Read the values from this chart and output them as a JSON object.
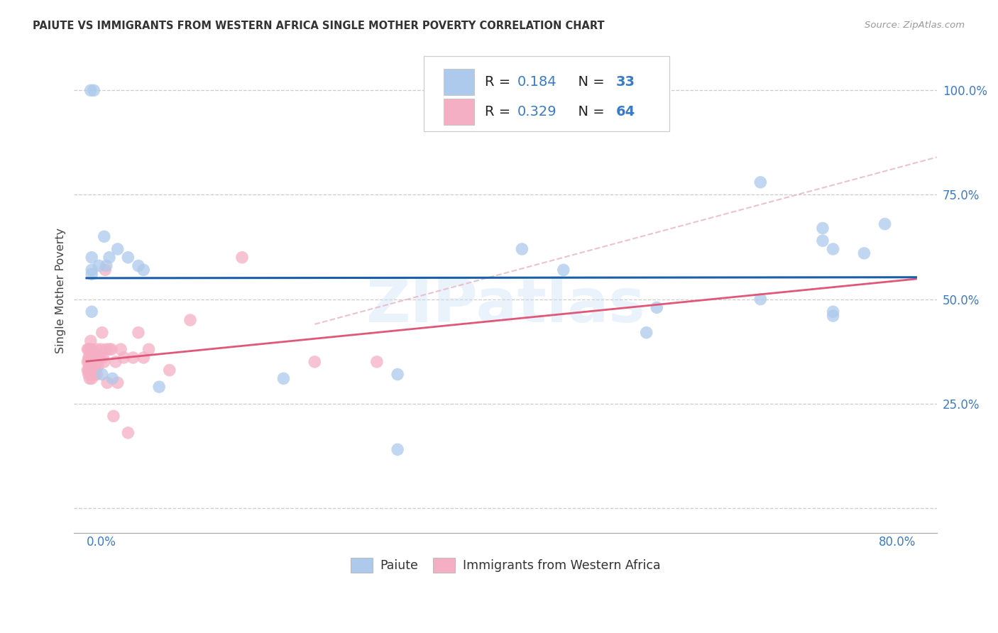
{
  "title": "PAIUTE VS IMMIGRANTS FROM WESTERN AFRICA SINGLE MOTHER POVERTY CORRELATION CHART",
  "source": "Source: ZipAtlas.com",
  "ylabel": "Single Mother Poverty",
  "legend_r1": "0.184",
  "legend_n1": "33",
  "legend_r2": "0.329",
  "legend_n2": "64",
  "color_paiute": "#adc9eb",
  "color_africa": "#f5afc4",
  "color_paiute_line": "#1a5fa8",
  "color_africa_line": "#e05878",
  "color_dashed": "#e8b8c8",
  "background": "#ffffff",
  "watermark": "ZIPatlas",
  "paiute_x": [
    0.004,
    0.007,
    0.005,
    0.012,
    0.017,
    0.019,
    0.022,
    0.03,
    0.04,
    0.05,
    0.055,
    0.005,
    0.005,
    0.005,
    0.3,
    0.46,
    0.54,
    0.65,
    0.71,
    0.71,
    0.72,
    0.72,
    0.75,
    0.77,
    0.65,
    0.72,
    0.3,
    0.55,
    0.42,
    0.015,
    0.025,
    0.07,
    0.19
  ],
  "paiute_y": [
    1.0,
    1.0,
    0.6,
    0.58,
    0.65,
    0.58,
    0.6,
    0.62,
    0.6,
    0.58,
    0.57,
    0.57,
    0.47,
    0.56,
    0.32,
    0.57,
    0.42,
    0.78,
    0.64,
    0.67,
    0.47,
    0.62,
    0.61,
    0.68,
    0.5,
    0.46,
    0.14,
    0.48,
    0.62,
    0.32,
    0.31,
    0.29,
    0.31
  ],
  "africa_x": [
    0.001,
    0.001,
    0.001,
    0.002,
    0.002,
    0.002,
    0.002,
    0.002,
    0.003,
    0.003,
    0.003,
    0.003,
    0.003,
    0.004,
    0.004,
    0.004,
    0.004,
    0.004,
    0.004,
    0.005,
    0.005,
    0.005,
    0.005,
    0.005,
    0.006,
    0.006,
    0.006,
    0.007,
    0.007,
    0.008,
    0.008,
    0.008,
    0.009,
    0.009,
    0.01,
    0.01,
    0.01,
    0.011,
    0.012,
    0.013,
    0.014,
    0.015,
    0.016,
    0.017,
    0.018,
    0.019,
    0.02,
    0.022,
    0.024,
    0.026,
    0.028,
    0.03,
    0.033,
    0.036,
    0.04,
    0.045,
    0.05,
    0.055,
    0.06,
    0.08,
    0.1,
    0.15,
    0.22,
    0.28
  ],
  "africa_y": [
    0.33,
    0.35,
    0.38,
    0.32,
    0.33,
    0.35,
    0.36,
    0.38,
    0.31,
    0.33,
    0.35,
    0.36,
    0.38,
    0.32,
    0.33,
    0.35,
    0.36,
    0.38,
    0.4,
    0.31,
    0.33,
    0.35,
    0.36,
    0.38,
    0.32,
    0.35,
    0.37,
    0.33,
    0.36,
    0.32,
    0.34,
    0.37,
    0.33,
    0.36,
    0.32,
    0.35,
    0.38,
    0.34,
    0.36,
    0.36,
    0.38,
    0.42,
    0.36,
    0.35,
    0.57,
    0.38,
    0.3,
    0.38,
    0.38,
    0.22,
    0.35,
    0.3,
    0.38,
    0.36,
    0.18,
    0.36,
    0.42,
    0.36,
    0.38,
    0.33,
    0.45,
    0.6,
    0.35,
    0.35
  ],
  "xlim": [
    -0.012,
    0.82
  ],
  "ylim": [
    -0.06,
    1.1
  ],
  "ytick_vals": [
    0.0,
    0.25,
    0.5,
    0.75,
    1.0
  ],
  "ytick_labels": [
    "",
    "25.0%",
    "50.0%",
    "75.0%",
    "100.0%"
  ]
}
